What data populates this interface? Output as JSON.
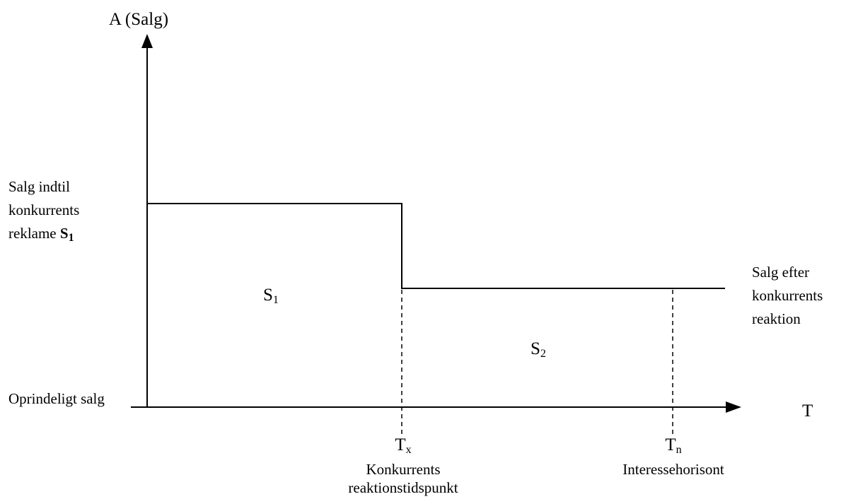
{
  "y_axis": {
    "label": "A (Salg)"
  },
  "x_axis": {
    "label": "T"
  },
  "left_labels": {
    "sales_until_line1": "Salg indtil",
    "sales_until_line2": "konkurrents",
    "sales_until_line3": "reklame",
    "sales_until_symbol": "S",
    "sales_until_symbol_sub": "1",
    "original_sales": "Oprindeligt salg"
  },
  "right_labels": {
    "line1": "Salg efter",
    "line2": "konkurrents",
    "line3": "reaktion"
  },
  "areas": {
    "s1": {
      "symbol": "S",
      "sub": "1"
    },
    "s2": {
      "symbol": "S",
      "sub": "2"
    }
  },
  "time_markers": {
    "tx": {
      "symbol": "T",
      "sub": "x",
      "line1": "Konkurrents",
      "line2": "reaktionstidspunkt"
    },
    "tn": {
      "symbol": "T",
      "sub": "n",
      "line1": "Interessehorisont"
    }
  },
  "colors": {
    "stroke": "#000000",
    "background": "#ffffff"
  }
}
